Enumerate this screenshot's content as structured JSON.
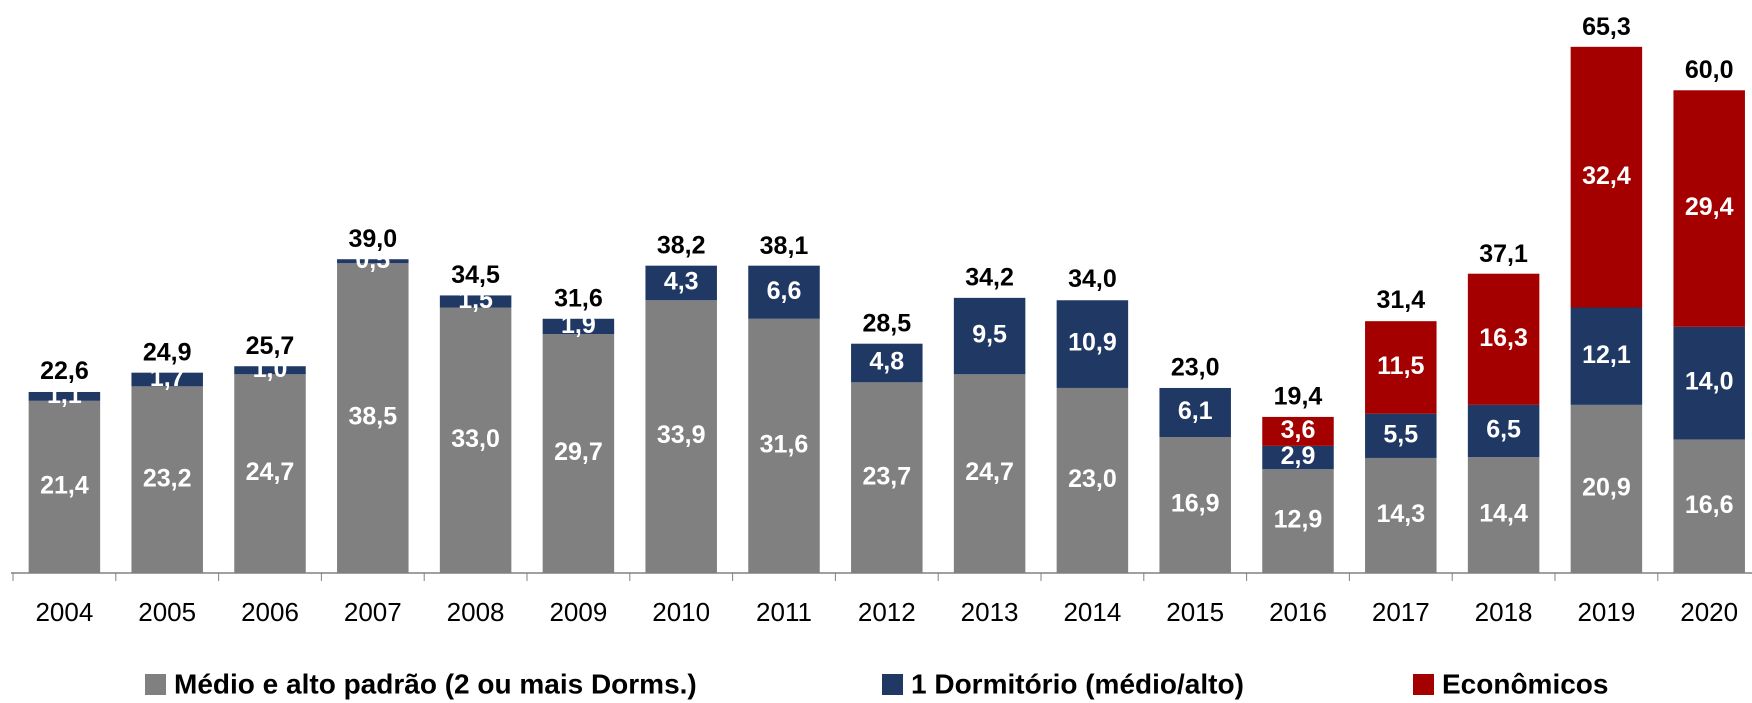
{
  "chart_data": {
    "type": "stacked_bar",
    "categories": [
      "2004",
      "2005",
      "2006",
      "2007",
      "2008",
      "2009",
      "2010",
      "2011",
      "2012",
      "2013",
      "2014",
      "2015",
      "2016",
      "2017",
      "2018",
      "2019",
      "2020"
    ],
    "series": [
      {
        "name": "Médio e alto padrão (2 ou mais Dorms.)",
        "color": "#808080",
        "values": [
          21.4,
          23.2,
          24.7,
          38.5,
          33.0,
          29.7,
          33.9,
          31.6,
          23.7,
          24.7,
          23.0,
          16.9,
          12.9,
          14.3,
          14.4,
          20.9,
          16.6
        ],
        "value_labels": [
          "21,4",
          "23,2",
          "24,7",
          "38,5",
          "33,0",
          "29,7",
          "33,9",
          "31,6",
          "23,7",
          "24,7",
          "23,0",
          "16,9",
          "12,9",
          "14,3",
          "14,4",
          "20,9",
          "16,6"
        ]
      },
      {
        "name": "1 Dormitório (médio/alto)",
        "color": "#1f3864",
        "values": [
          1.1,
          1.7,
          1.0,
          0.5,
          1.5,
          1.9,
          4.3,
          6.6,
          4.8,
          9.5,
          10.9,
          6.1,
          2.9,
          5.5,
          6.5,
          12.1,
          14.0
        ],
        "value_labels": [
          "1,1",
          "1,7",
          "1,0",
          "0,5",
          "1,5",
          "1,9",
          "4,3",
          "6,6",
          "4,8",
          "9,5",
          "10,9",
          "6,1",
          "2,9",
          "5,5",
          "6,5",
          "12,1",
          "14,0"
        ]
      },
      {
        "name": "Econômicos",
        "color": "#a50000",
        "values": [
          null,
          null,
          null,
          null,
          null,
          null,
          null,
          null,
          null,
          null,
          null,
          null,
          3.6,
          11.5,
          16.3,
          32.4,
          29.4
        ],
        "value_labels": [
          null,
          null,
          null,
          null,
          null,
          null,
          null,
          null,
          null,
          null,
          null,
          null,
          "3,6",
          "11,5",
          "16,3",
          "32,4",
          "29,4"
        ]
      }
    ],
    "totals": {
      "values": [
        22.6,
        24.9,
        25.7,
        39.0,
        34.5,
        31.6,
        38.2,
        38.1,
        28.5,
        34.2,
        34.0,
        23.0,
        19.4,
        31.4,
        37.1,
        65.3,
        60.0
      ],
      "value_labels": [
        "22,6",
        "24,9",
        "25,7",
        "39,0",
        "34,5",
        "31,6",
        "38,2",
        "38,1",
        "28,5",
        "34,2",
        "34,0",
        "23,0",
        "19,4",
        "31,4",
        "37,1",
        "65,3",
        "60,0"
      ]
    },
    "ylim": [
      0,
      66
    ]
  }
}
